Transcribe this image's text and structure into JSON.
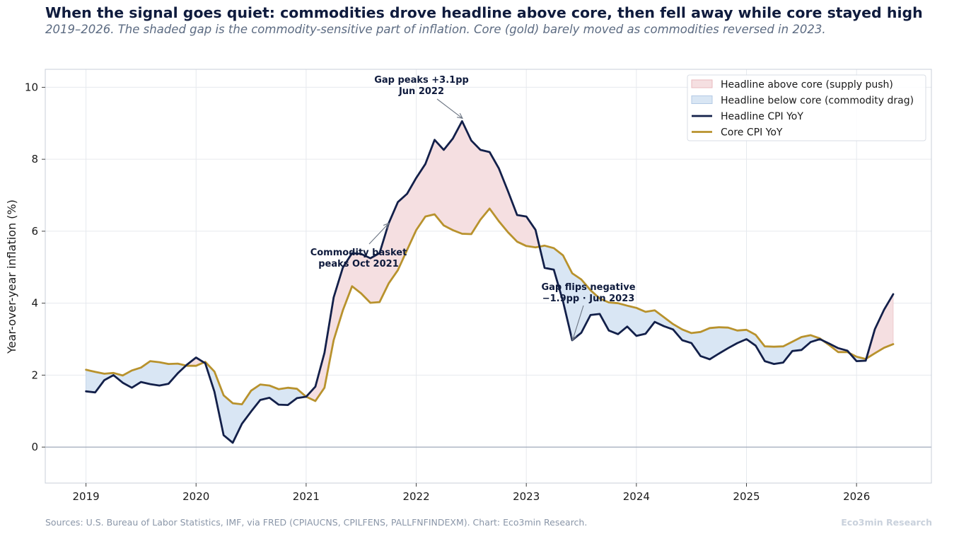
{
  "title": "When the signal goes quiet: commodities drove headline above core, then fell away while core stayed high",
  "subtitle": "2019–2026. The shaded gap is the commodity-sensitive part of inflation. Core (gold) barely moved as commodities reversed in 2023.",
  "source": "Sources: U.S. Bureau of Labor Statistics, IMF, via FRED (CPIAUCNS, CPILFENS, PALLFNFINDEXM). Chart: Eco3min Research.",
  "brand": "Eco3min Research",
  "colors": {
    "headline": "#13204a",
    "core": "#b8922d",
    "gap_above": "#f5dfe1",
    "gap_above_edge": "#e9b9be",
    "gap_below": "#d9e6f4",
    "gap_below_edge": "#b3c9e4",
    "grid": "#e6e9ee",
    "zero_line": "#8d99ab",
    "axis_frame": "#c8cfda",
    "annotation_arrow": "#6b7482"
  },
  "chart_data": {
    "type": "line",
    "xlabel": "",
    "ylabel": "Year-over-year inflation (%)",
    "xlim": [
      2018.63,
      2026.68
    ],
    "ylim": [
      -1.0,
      10.5
    ],
    "x_ticks": [
      "2019",
      "2020",
      "2021",
      "2022",
      "2023",
      "2024",
      "2025",
      "2026"
    ],
    "y_ticks": [
      "0",
      "2",
      "4",
      "6",
      "8",
      "10"
    ],
    "grid": true,
    "legend_position": "top-right",
    "x_start": "2019-01",
    "x_step": "monthly",
    "series": [
      {
        "name": "Headline CPI YoY",
        "values": [
          1.55,
          1.52,
          1.86,
          2.0,
          1.79,
          1.65,
          1.81,
          1.75,
          1.71,
          1.76,
          2.05,
          2.29,
          2.49,
          2.33,
          1.54,
          0.33,
          0.12,
          0.65,
          0.99,
          1.31,
          1.37,
          1.18,
          1.17,
          1.36,
          1.4,
          1.68,
          2.62,
          4.16,
          4.99,
          5.39,
          5.37,
          5.25,
          5.39,
          6.22,
          6.81,
          7.04,
          7.48,
          7.87,
          8.54,
          8.26,
          8.58,
          9.06,
          8.52,
          8.26,
          8.2,
          7.75,
          7.11,
          6.45,
          6.41,
          6.04,
          4.98,
          4.93,
          4.05,
          2.97,
          3.18,
          3.67,
          3.7,
          3.24,
          3.14,
          3.35,
          3.09,
          3.15,
          3.48,
          3.36,
          3.27,
          2.97,
          2.89,
          2.53,
          2.44,
          2.6,
          2.75,
          2.89,
          3.0,
          2.82,
          2.39,
          2.31,
          2.35,
          2.67,
          2.7,
          2.92,
          3.0,
          2.88,
          2.75,
          2.68,
          2.39,
          2.4,
          3.28,
          3.82,
          4.25
        ]
      },
      {
        "name": "Core CPI YoY",
        "values": [
          2.15,
          2.09,
          2.04,
          2.06,
          1.99,
          2.13,
          2.21,
          2.39,
          2.36,
          2.31,
          2.32,
          2.26,
          2.26,
          2.37,
          2.1,
          1.44,
          1.22,
          1.19,
          1.57,
          1.74,
          1.71,
          1.61,
          1.65,
          1.62,
          1.4,
          1.28,
          1.65,
          2.97,
          3.8,
          4.47,
          4.27,
          4.01,
          4.03,
          4.55,
          4.92,
          5.48,
          6.03,
          6.41,
          6.47,
          6.16,
          6.03,
          5.93,
          5.92,
          6.32,
          6.63,
          6.28,
          5.97,
          5.71,
          5.59,
          5.55,
          5.6,
          5.53,
          5.33,
          4.83,
          4.66,
          4.36,
          4.13,
          4.02,
          4.0,
          3.93,
          3.87,
          3.76,
          3.8,
          3.61,
          3.42,
          3.27,
          3.17,
          3.2,
          3.31,
          3.33,
          3.32,
          3.24,
          3.26,
          3.12,
          2.8,
          2.79,
          2.8,
          2.93,
          3.06,
          3.11,
          3.02,
          2.84,
          2.64,
          2.64,
          2.51,
          2.45,
          2.61,
          2.76,
          2.86
        ]
      }
    ],
    "fill_between": [
      {
        "name": "Headline above core (supply push)",
        "where": "headline > core",
        "color_key": "gap_above"
      },
      {
        "name": "Headline below core (commodity drag)",
        "where": "headline < core",
        "color_key": "gap_below"
      }
    ],
    "annotations": [
      {
        "lines": [
          "Gap peaks +3.1pp",
          "Jun 2022"
        ],
        "target_x": 2022.42,
        "target_y": 9.06
      },
      {
        "lines": [
          "Commodity basket",
          "peaks Oct 2021"
        ],
        "target_x": 2021.75,
        "target_y": 6.22
      },
      {
        "lines": [
          "Gap flips negative",
          "−1.9pp · Jun 2023"
        ],
        "target_x": 2023.42,
        "target_y": 2.97
      }
    ],
    "legend": [
      {
        "label": "Headline above core (supply push)",
        "kind": "patch",
        "color_key": "gap_above"
      },
      {
        "label": "Headline below core (commodity drag)",
        "kind": "patch",
        "color_key": "gap_below"
      },
      {
        "label": "Headline CPI YoY",
        "kind": "line",
        "color_key": "headline"
      },
      {
        "label": "Core CPI YoY",
        "kind": "line",
        "color_key": "core"
      }
    ]
  }
}
